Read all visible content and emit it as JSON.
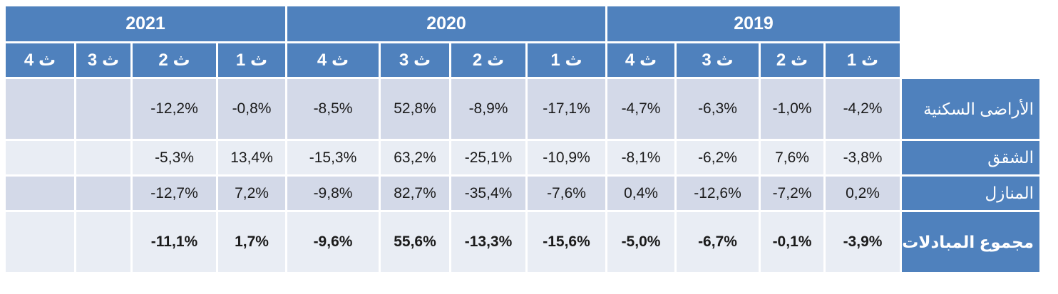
{
  "years": [
    "2021",
    "2020",
    "2019"
  ],
  "quarters": [
    "ث 4",
    "ث 3",
    "ث 2",
    "ث 1",
    "ث 4",
    "ث 3",
    "ث 2",
    "ث 1",
    "ث 4",
    "ث 3",
    "ث 2",
    "ث 1"
  ],
  "rows": [
    {
      "label": "الأراضى السكنية",
      "values": [
        "",
        "",
        "-12,2%",
        "-0,8%",
        "-8,5%",
        "52,8%",
        "-8,9%",
        "-17,1%",
        "-4,7%",
        "-6,3%",
        "-1,0%",
        "-4,2%"
      ]
    },
    {
      "label": "الشقق",
      "values": [
        "",
        "",
        "-5,3%",
        "13,4%",
        "-15,3%",
        "63,2%",
        "-25,1%",
        "-10,9%",
        "-8,1%",
        "-6,2%",
        "7,6%",
        "-3,8%"
      ]
    },
    {
      "label": "المنازل",
      "values": [
        "",
        "",
        "-12,7%",
        "7,2%",
        "-9,8%",
        "82,7%",
        "-35,4%",
        "-7,6%",
        "0,4%",
        "-12,6%",
        "-7,2%",
        "0,2%"
      ]
    },
    {
      "label": "مجموع المبادلات",
      "values": [
        "",
        "",
        "-11,1%",
        "1,7%",
        "-9,6%",
        "55,6%",
        "-13,3%",
        "-15,6%",
        "-5,0%",
        "-6,7%",
        "-0,1%",
        "-3,9%"
      ]
    }
  ],
  "colors": {
    "header": "#4f81bd",
    "row_shade": "#d3d9e8",
    "row_light": "#e9edf4"
  }
}
